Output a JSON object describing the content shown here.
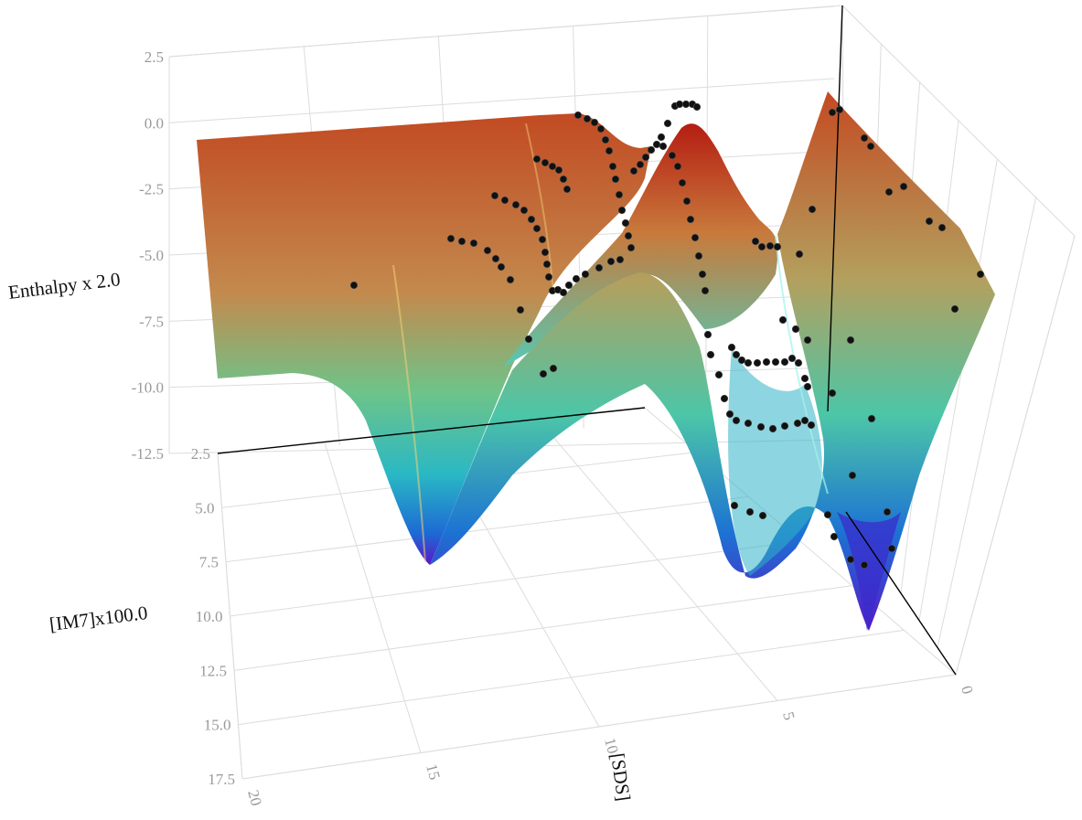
{
  "chart_data": {
    "type": "surface",
    "axes": {
      "x": {
        "title": "[SDS]",
        "range": [
          0,
          20
        ],
        "ticks": [
          "0",
          "5",
          "10",
          "15",
          "20"
        ],
        "tick_values": [
          0,
          5,
          10,
          15,
          20
        ]
      },
      "y": {
        "title": "[IM7]x100.0",
        "range": [
          2.5,
          17.5
        ],
        "ticks": [
          "2.5",
          "5.0",
          "7.5",
          "10.0",
          "12.5",
          "15.0",
          "17.5"
        ],
        "tick_values": [
          2.5,
          5,
          7.5,
          10,
          12.5,
          15,
          17.5
        ]
      },
      "z": {
        "title": "Enthalpy x 2.0",
        "range": [
          -12.5,
          2.5
        ],
        "ticks": [
          "2.5",
          "0.0",
          "-2.5",
          "-5.0",
          "-7.5",
          "-10.0",
          "-12.5"
        ],
        "tick_values": [
          2.5,
          0,
          -2.5,
          -5,
          -7.5,
          -10,
          -12.5
        ]
      }
    },
    "colorscale": [
      "#5a16c8",
      "#1f6fd6",
      "#19a9cf",
      "#3fd6c2",
      "#6fc38e",
      "#c6b46a",
      "#c04a22",
      "#a11710"
    ],
    "surface_shape": "sigmoidal wells: plateau near 0 at high [SDS], minima near -12.5 at [SDS] 0-2, [IM7] 10",
    "markers": {
      "color": "#111111"
    },
    "grid": true,
    "legend": "none"
  }
}
